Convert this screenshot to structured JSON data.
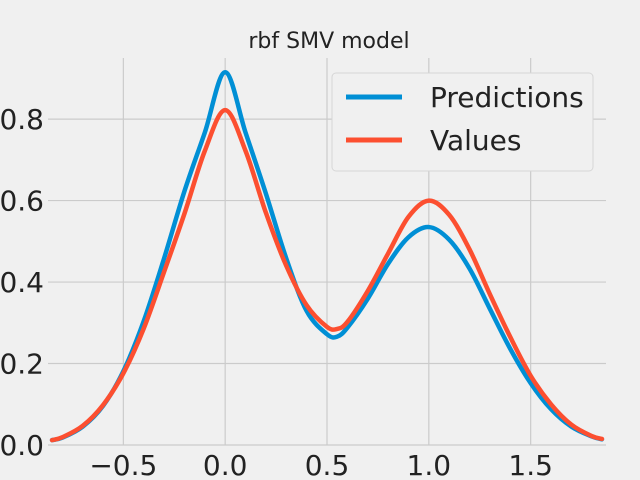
{
  "chart_data": {
    "type": "line",
    "title": "rbf SMV model",
    "xlabel": "",
    "ylabel": "",
    "xlim": [
      -0.87,
      1.87
    ],
    "ylim": [
      0.0,
      0.95
    ],
    "xticks": [
      -0.5,
      0.0,
      0.5,
      1.0,
      1.5
    ],
    "xtick_labels": [
      "−0.5",
      "0.0",
      "0.5",
      "1.0",
      "1.5"
    ],
    "yticks": [
      0.0,
      0.2,
      0.4,
      0.6,
      0.8
    ],
    "ytick_labels": [
      "0.0",
      "0.2",
      "0.4",
      "0.6",
      "0.8"
    ],
    "grid": true,
    "legend_position": "top-right",
    "x": [
      -0.85,
      -0.8,
      -0.7,
      -0.6,
      -0.5,
      -0.4,
      -0.3,
      -0.2,
      -0.1,
      0.0,
      0.1,
      0.2,
      0.3,
      0.4,
      0.5,
      0.55,
      0.6,
      0.7,
      0.8,
      0.9,
      1.0,
      1.1,
      1.2,
      1.3,
      1.4,
      1.5,
      1.6,
      1.7,
      1.8,
      1.85
    ],
    "series": [
      {
        "name": "Predictions",
        "color": "#008fd5",
        "values": [
          0.012,
          0.018,
          0.045,
          0.096,
          0.181,
          0.304,
          0.458,
          0.623,
          0.767,
          0.915,
          0.767,
          0.617,
          0.458,
          0.329,
          0.272,
          0.266,
          0.288,
          0.359,
          0.445,
          0.51,
          0.535,
          0.504,
          0.433,
          0.334,
          0.236,
          0.152,
          0.088,
          0.045,
          0.021,
          0.014
        ]
      },
      {
        "name": "Values",
        "color": "#fc4f30",
        "values": [
          0.012,
          0.019,
          0.047,
          0.098,
          0.176,
          0.286,
          0.425,
          0.568,
          0.722,
          0.822,
          0.722,
          0.57,
          0.44,
          0.343,
          0.29,
          0.285,
          0.302,
          0.378,
          0.47,
          0.56,
          0.6,
          0.565,
          0.48,
          0.37,
          0.265,
          0.17,
          0.1,
          0.05,
          0.022,
          0.015
        ]
      }
    ]
  }
}
